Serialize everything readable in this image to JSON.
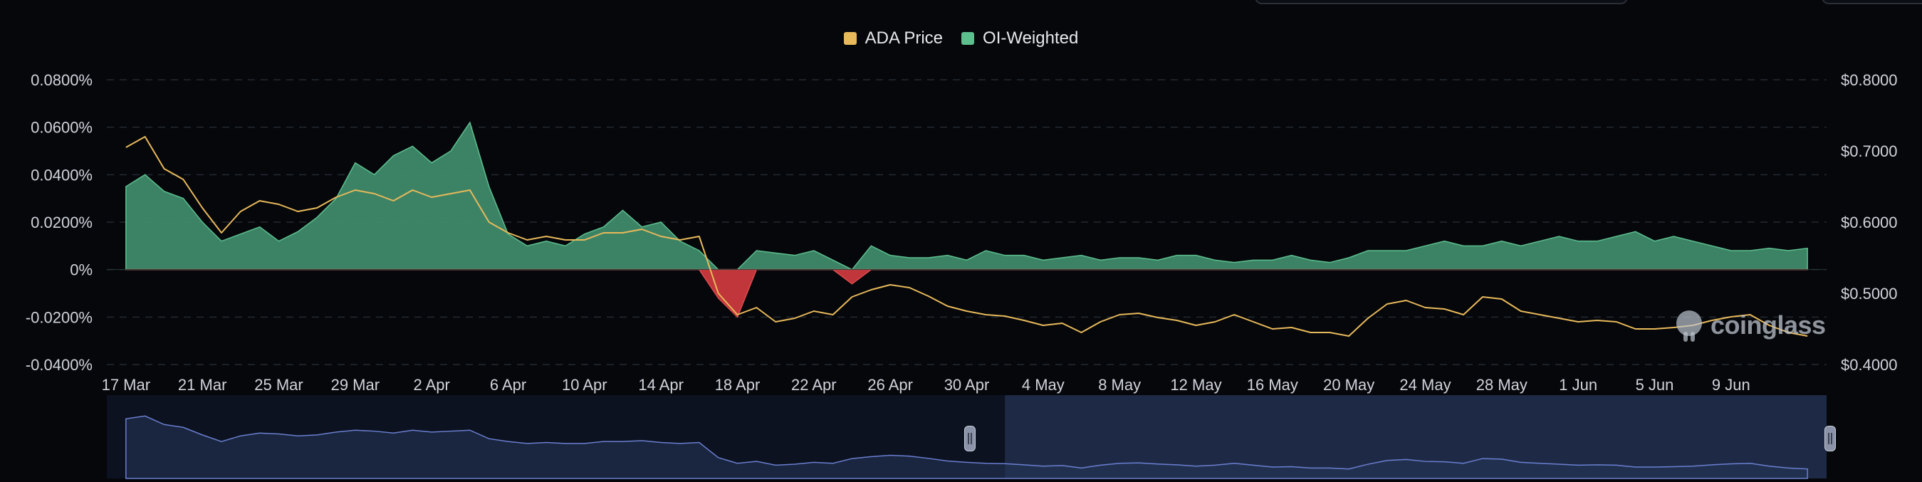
{
  "chart_data": {
    "type": "area",
    "legend": [
      {
        "name": "ADA Price",
        "color": "#e8b95a"
      },
      {
        "name": "OI-Weighted",
        "color": "#5dbf8e"
      }
    ],
    "legend_placement": "top-center",
    "x_tick_labels": [
      "17 Mar",
      "21 Mar",
      "25 Mar",
      "29 Mar",
      "2 Apr",
      "6 Apr",
      "10 Apr",
      "14 Apr",
      "18 Apr",
      "22 Apr",
      "26 Apr",
      "30 Apr",
      "4 May",
      "8 May",
      "12 May",
      "16 May",
      "20 May",
      "24 May",
      "28 May",
      "1 Jun",
      "5 Jun",
      "9 Jun"
    ],
    "x_range_days": [
      -1,
      89
    ],
    "y_left": {
      "ticks": [
        "0.0800%",
        "0.0600%",
        "0.0400%",
        "0.0200%",
        "0%",
        "-0.0200%",
        "-0.0400%"
      ],
      "ylim": [
        -0.04,
        0.08
      ],
      "unit": "%"
    },
    "y_right": {
      "ticks": [
        "$0.8000",
        "$0.7000",
        "$0.6000",
        "$0.5000",
        "$0.4000"
      ],
      "ylim": [
        0.4,
        0.8
      ],
      "unit": "$"
    },
    "grid": "horizontal dashed",
    "series": [
      {
        "name": "OI-Weighted",
        "axis": "left",
        "x": [
          0,
          1,
          2,
          3,
          4,
          5,
          6,
          7,
          8,
          9,
          10,
          11,
          12,
          13,
          14,
          15,
          16,
          17,
          18,
          19,
          20,
          21,
          22,
          23,
          24,
          25,
          26,
          27,
          28,
          29,
          30,
          31,
          32,
          33,
          34,
          35,
          36,
          37,
          38,
          39,
          40,
          41,
          42,
          43,
          44,
          45,
          46,
          47,
          48,
          49,
          50,
          51,
          52,
          53,
          54,
          55,
          56,
          57,
          58,
          59,
          60,
          61,
          62,
          63,
          64,
          65,
          66,
          67,
          68,
          69,
          70,
          71,
          72,
          73,
          74,
          75,
          76,
          77,
          78,
          79,
          80,
          81,
          82,
          83,
          84,
          85,
          86,
          87,
          88
        ],
        "values": [
          0.035,
          0.04,
          0.033,
          0.03,
          0.02,
          0.012,
          0.015,
          0.018,
          0.012,
          0.016,
          0.022,
          0.03,
          0.045,
          0.04,
          0.048,
          0.052,
          0.045,
          0.05,
          0.062,
          0.035,
          0.015,
          0.01,
          0.012,
          0.01,
          0.015,
          0.018,
          0.025,
          0.018,
          0.02,
          0.012,
          0.008,
          -0.012,
          -0.02,
          0.008,
          0.007,
          0.006,
          0.008,
          0.004,
          -0.006,
          0.01,
          0.006,
          0.005,
          0.005,
          0.006,
          0.004,
          0.008,
          0.006,
          0.006,
          0.004,
          0.005,
          0.006,
          0.004,
          0.005,
          0.005,
          0.004,
          0.006,
          0.006,
          0.004,
          0.003,
          0.004,
          0.004,
          0.006,
          0.004,
          0.003,
          0.005,
          0.008,
          0.008,
          0.008,
          0.01,
          0.012,
          0.01,
          0.01,
          0.012,
          0.01,
          0.012,
          0.014,
          0.012,
          0.012,
          0.014,
          0.016,
          0.012,
          0.014,
          0.012,
          0.01,
          0.008,
          0.008,
          0.009,
          0.008,
          0.009
        ]
      },
      {
        "name": "ADA Price",
        "axis": "right",
        "x": [
          0,
          1,
          2,
          3,
          4,
          5,
          6,
          7,
          8,
          9,
          10,
          11,
          12,
          13,
          14,
          15,
          16,
          17,
          18,
          19,
          20,
          21,
          22,
          23,
          24,
          25,
          26,
          27,
          28,
          29,
          30,
          31,
          32,
          33,
          34,
          35,
          36,
          37,
          38,
          39,
          40,
          41,
          42,
          43,
          44,
          45,
          46,
          47,
          48,
          49,
          50,
          51,
          52,
          53,
          54,
          55,
          56,
          57,
          58,
          59,
          60,
          61,
          62,
          63,
          64,
          65,
          66,
          67,
          68,
          69,
          70,
          71,
          72,
          73,
          74,
          75,
          76,
          77,
          78,
          79,
          80,
          81,
          82,
          83,
          84,
          85,
          86,
          87,
          88
        ],
        "values": [
          0.705,
          0.72,
          0.675,
          0.66,
          0.62,
          0.585,
          0.615,
          0.63,
          0.625,
          0.615,
          0.62,
          0.635,
          0.645,
          0.64,
          0.63,
          0.645,
          0.635,
          0.64,
          0.645,
          0.6,
          0.585,
          0.575,
          0.58,
          0.575,
          0.575,
          0.585,
          0.585,
          0.59,
          0.58,
          0.575,
          0.58,
          0.5,
          0.47,
          0.48,
          0.46,
          0.465,
          0.475,
          0.47,
          0.495,
          0.505,
          0.512,
          0.508,
          0.496,
          0.482,
          0.475,
          0.47,
          0.468,
          0.462,
          0.455,
          0.458,
          0.445,
          0.46,
          0.47,
          0.472,
          0.466,
          0.462,
          0.455,
          0.46,
          0.47,
          0.46,
          0.45,
          0.452,
          0.445,
          0.445,
          0.44,
          0.465,
          0.485,
          0.49,
          0.48,
          0.478,
          0.47,
          0.495,
          0.492,
          0.475,
          0.47,
          0.465,
          0.46,
          0.462,
          0.46,
          0.45,
          0.45,
          0.452,
          0.455,
          0.462,
          0.467,
          0.47,
          0.455,
          0.445,
          0.44
        ]
      }
    ]
  }
}
